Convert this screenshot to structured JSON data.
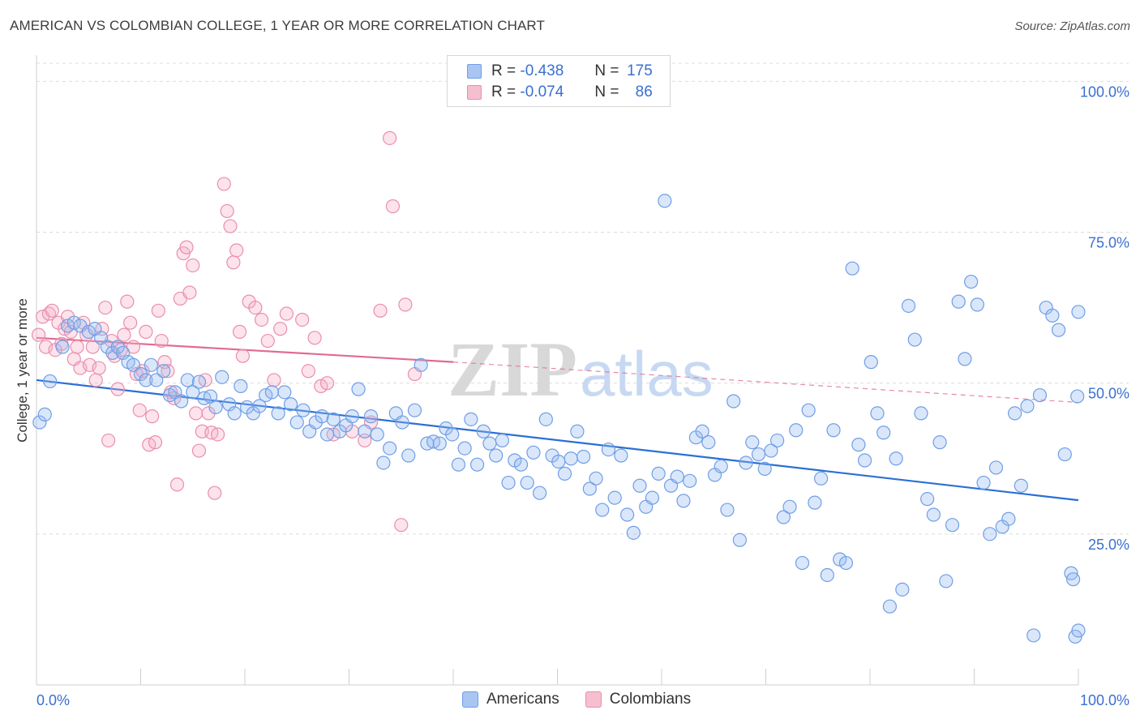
{
  "header": {
    "title": "AMERICAN VS COLOMBIAN COLLEGE, 1 YEAR OR MORE CORRELATION CHART",
    "source": "Source: ZipAtlas.com"
  },
  "legend": {
    "rows": [
      {
        "r_label": "R =",
        "r_value": "-0.438",
        "n_label": "N =",
        "n_value": "175",
        "color": "#a9c6f2",
        "border": "#6f9ee6"
      },
      {
        "r_label": "R =",
        "r_value": "-0.074",
        "n_label": "N =",
        "n_value": "86",
        "color": "#f6bfd0",
        "border": "#ea8fab"
      }
    ]
  },
  "bottom_legend": {
    "items": [
      {
        "label": "Americans",
        "color": "#a9c6f2",
        "border": "#6f9ee6"
      },
      {
        "label": "Colombians",
        "color": "#f6bfd0",
        "border": "#ea8fab"
      }
    ]
  },
  "watermark": {
    "part1": "ZIP",
    "part2": "atlas"
  },
  "chart_data": {
    "type": "scatter",
    "title": "AMERICAN VS COLOMBIAN COLLEGE, 1 YEAR OR MORE CORRELATION CHART",
    "xlabel": "",
    "ylabel": "College, 1 year or more",
    "xlim": [
      0,
      100
    ],
    "ylim": [
      0,
      103
    ],
    "x_tick_labels": [
      "0.0%",
      "100.0%"
    ],
    "y_ticks": [
      25,
      50,
      75,
      100
    ],
    "y_tick_labels": [
      "25.0%",
      "50.0%",
      "75.0%",
      "100.0%"
    ],
    "grid": "horizontal dashed",
    "legend_position": "top-center",
    "series": [
      {
        "name": "Americans",
        "color": "#6f9ee6",
        "fill": "rgba(150,185,240,0.35)",
        "trend": {
          "x0": 0,
          "y0": 50.5,
          "x1": 100,
          "y1": 30.6,
          "style": "solid",
          "color": "#2a6fd6"
        },
        "points": [
          [
            0.3,
            43.5
          ],
          [
            0.8,
            44.8
          ],
          [
            1.3,
            50.3
          ],
          [
            2.5,
            56
          ],
          [
            3.0,
            59.5
          ],
          [
            3.6,
            60
          ],
          [
            4.2,
            59.5
          ],
          [
            5.0,
            58.5
          ],
          [
            5.6,
            59
          ],
          [
            6.2,
            57.5
          ],
          [
            6.8,
            56
          ],
          [
            7.3,
            55
          ],
          [
            7.8,
            56
          ],
          [
            8.3,
            55
          ],
          [
            8.8,
            53.5
          ],
          [
            9.3,
            53
          ],
          [
            10.0,
            51.5
          ],
          [
            10.5,
            50.5
          ],
          [
            11.0,
            53
          ],
          [
            11.5,
            50.5
          ],
          [
            12.2,
            52
          ],
          [
            12.8,
            48
          ],
          [
            13.3,
            48.5
          ],
          [
            13.9,
            47
          ],
          [
            14.5,
            50.5
          ],
          [
            15.0,
            48.5
          ],
          [
            15.6,
            50.2
          ],
          [
            16.1,
            47.5
          ],
          [
            16.7,
            47.8
          ],
          [
            17.2,
            46
          ],
          [
            17.8,
            51
          ],
          [
            18.5,
            46.5
          ],
          [
            19.0,
            45
          ],
          [
            19.6,
            49.5
          ],
          [
            20.2,
            46
          ],
          [
            20.8,
            45
          ],
          [
            21.4,
            46.2
          ],
          [
            22.0,
            48
          ],
          [
            22.6,
            48.5
          ],
          [
            23.2,
            45
          ],
          [
            23.8,
            48.5
          ],
          [
            24.4,
            46.5
          ],
          [
            25.0,
            43.5
          ],
          [
            25.6,
            45.5
          ],
          [
            26.2,
            42
          ],
          [
            26.8,
            43.5
          ],
          [
            27.4,
            44.5
          ],
          [
            27.9,
            41.5
          ],
          [
            28.5,
            44
          ],
          [
            29.1,
            42
          ],
          [
            29.7,
            43
          ],
          [
            30.3,
            44.5
          ],
          [
            30.9,
            49
          ],
          [
            31.5,
            42
          ],
          [
            32.1,
            44.5
          ],
          [
            32.7,
            41.5
          ],
          [
            33.3,
            36.8
          ],
          [
            33.9,
            39.2
          ],
          [
            34.5,
            45
          ],
          [
            35.1,
            43.5
          ],
          [
            35.7,
            38
          ],
          [
            36.3,
            45.5
          ],
          [
            36.9,
            53
          ],
          [
            37.5,
            40
          ],
          [
            38.1,
            40.3
          ],
          [
            38.7,
            40
          ],
          [
            39.3,
            42.5
          ],
          [
            39.9,
            41.5
          ],
          [
            40.5,
            36.5
          ],
          [
            41.1,
            39.2
          ],
          [
            41.7,
            44
          ],
          [
            42.3,
            36.5
          ],
          [
            42.9,
            42
          ],
          [
            43.5,
            40
          ],
          [
            44.1,
            38
          ],
          [
            44.7,
            40.5
          ],
          [
            45.3,
            33.5
          ],
          [
            45.9,
            37.2
          ],
          [
            46.5,
            36.5
          ],
          [
            47.1,
            33.5
          ],
          [
            47.7,
            38.5
          ],
          [
            48.3,
            31.8
          ],
          [
            48.9,
            44
          ],
          [
            49.5,
            38
          ],
          [
            50.1,
            37
          ],
          [
            50.7,
            35
          ],
          [
            51.3,
            37.5
          ],
          [
            51.9,
            42
          ],
          [
            52.5,
            37.8
          ],
          [
            53.1,
            32.5
          ],
          [
            53.7,
            34.2
          ],
          [
            54.3,
            29
          ],
          [
            54.9,
            39
          ],
          [
            55.5,
            31
          ],
          [
            56.1,
            38
          ],
          [
            56.7,
            28.2
          ],
          [
            57.3,
            25.2
          ],
          [
            57.9,
            33
          ],
          [
            58.5,
            29.5
          ],
          [
            59.1,
            31
          ],
          [
            59.7,
            35
          ],
          [
            60.3,
            80.2
          ],
          [
            60.9,
            33
          ],
          [
            61.5,
            34.5
          ],
          [
            62.1,
            30.5
          ],
          [
            62.7,
            33.8
          ],
          [
            63.3,
            41
          ],
          [
            63.9,
            42
          ],
          [
            64.5,
            40.2
          ],
          [
            65.1,
            34.8
          ],
          [
            65.7,
            36.2
          ],
          [
            66.3,
            29
          ],
          [
            66.9,
            47
          ],
          [
            67.5,
            24
          ],
          [
            68.1,
            36.8
          ],
          [
            68.7,
            40.2
          ],
          [
            69.3,
            38.2
          ],
          [
            69.9,
            35.8
          ],
          [
            70.5,
            38.8
          ],
          [
            71.1,
            40.5
          ],
          [
            71.7,
            27.8
          ],
          [
            72.3,
            29.5
          ],
          [
            72.9,
            42.2
          ],
          [
            73.5,
            20.2
          ],
          [
            74.1,
            45.5
          ],
          [
            74.7,
            30.2
          ],
          [
            75.3,
            34.2
          ],
          [
            75.9,
            18.2
          ],
          [
            76.5,
            42.2
          ],
          [
            77.1,
            20.8
          ],
          [
            77.7,
            20.2
          ],
          [
            78.3,
            69
          ],
          [
            78.9,
            39.8
          ],
          [
            79.5,
            37.2
          ],
          [
            80.1,
            53.5
          ],
          [
            80.7,
            45
          ],
          [
            81.3,
            41.8
          ],
          [
            81.9,
            13
          ],
          [
            82.5,
            37.5
          ],
          [
            83.1,
            15.8
          ],
          [
            83.7,
            62.8
          ],
          [
            84.3,
            57.2
          ],
          [
            84.9,
            45
          ],
          [
            85.5,
            30.8
          ],
          [
            86.1,
            28.2
          ],
          [
            86.7,
            40.2
          ],
          [
            87.3,
            17.2
          ],
          [
            87.9,
            26.5
          ],
          [
            88.5,
            63.5
          ],
          [
            89.1,
            54
          ],
          [
            89.7,
            66.8
          ],
          [
            90.3,
            63
          ],
          [
            90.9,
            33.5
          ],
          [
            91.5,
            25
          ],
          [
            92.1,
            36
          ],
          [
            92.7,
            26.2
          ],
          [
            93.3,
            27.5
          ],
          [
            93.9,
            45
          ],
          [
            94.5,
            33
          ],
          [
            95.1,
            46.2
          ],
          [
            95.7,
            8.2
          ],
          [
            96.3,
            48
          ],
          [
            96.9,
            62.5
          ],
          [
            97.5,
            61.2
          ],
          [
            98.1,
            58.8
          ],
          [
            98.7,
            38.2
          ],
          [
            99.3,
            18.5
          ],
          [
            99.5,
            17.5
          ],
          [
            99.7,
            8
          ],
          [
            99.9,
            47.8
          ],
          [
            100,
            9
          ],
          [
            100,
            61.8
          ]
        ]
      },
      {
        "name": "Colombians",
        "color": "#ea8fab",
        "fill": "rgba(245,175,200,0.35)",
        "trend": {
          "x0": 0,
          "y0": 57.5,
          "x1": 40,
          "y1": 53.5,
          "style": "solid",
          "color": "#e06b94",
          "ext_x1": 100,
          "ext_y1": 46.8,
          "ext_style": "dashed"
        },
        "points": [
          [
            0.2,
            58
          ],
          [
            0.6,
            61
          ],
          [
            0.9,
            56
          ],
          [
            1.2,
            61.5
          ],
          [
            1.5,
            62
          ],
          [
            1.8,
            55.5
          ],
          [
            2.1,
            60
          ],
          [
            2.4,
            56.5
          ],
          [
            2.7,
            59
          ],
          [
            3.0,
            61
          ],
          [
            3.3,
            58.5
          ],
          [
            3.6,
            54
          ],
          [
            3.9,
            56
          ],
          [
            4.2,
            52.5
          ],
          [
            4.5,
            60
          ],
          [
            4.8,
            58
          ],
          [
            5.1,
            53
          ],
          [
            5.4,
            56
          ],
          [
            5.7,
            50.5
          ],
          [
            6.0,
            52.5
          ],
          [
            6.3,
            59
          ],
          [
            6.6,
            62.5
          ],
          [
            6.9,
            40.5
          ],
          [
            7.2,
            57
          ],
          [
            7.5,
            54.5
          ],
          [
            7.8,
            49
          ],
          [
            8.1,
            55.5
          ],
          [
            8.4,
            58
          ],
          [
            8.7,
            63.5
          ],
          [
            9.0,
            60
          ],
          [
            9.3,
            56
          ],
          [
            9.6,
            51.5
          ],
          [
            9.9,
            45.5
          ],
          [
            10.2,
            52
          ],
          [
            10.5,
            58.5
          ],
          [
            10.8,
            39.8
          ],
          [
            11.1,
            44.5
          ],
          [
            11.4,
            40.2
          ],
          [
            11.7,
            62
          ],
          [
            12.0,
            57
          ],
          [
            12.3,
            53.5
          ],
          [
            12.6,
            52
          ],
          [
            12.9,
            48.5
          ],
          [
            13.2,
            47.5
          ],
          [
            13.5,
            33.2
          ],
          [
            13.8,
            64
          ],
          [
            14.1,
            71.5
          ],
          [
            14.4,
            72.5
          ],
          [
            14.7,
            65
          ],
          [
            15.0,
            69.5
          ],
          [
            15.3,
            45
          ],
          [
            15.6,
            38.8
          ],
          [
            15.9,
            42
          ],
          [
            16.2,
            50.5
          ],
          [
            16.5,
            45
          ],
          [
            16.8,
            41.8
          ],
          [
            17.1,
            31.8
          ],
          [
            17.4,
            41.5
          ],
          [
            18.0,
            83
          ],
          [
            18.3,
            78.5
          ],
          [
            18.6,
            76
          ],
          [
            18.9,
            70
          ],
          [
            19.2,
            72
          ],
          [
            19.5,
            58.5
          ],
          [
            19.8,
            54.5
          ],
          [
            20.4,
            63.5
          ],
          [
            21.0,
            62.5
          ],
          [
            21.6,
            60.5
          ],
          [
            22.2,
            57
          ],
          [
            22.8,
            50.5
          ],
          [
            23.4,
            59
          ],
          [
            24.0,
            61.5
          ],
          [
            25.5,
            60.5
          ],
          [
            26.1,
            52
          ],
          [
            26.7,
            57.5
          ],
          [
            27.3,
            49.5
          ],
          [
            27.9,
            50
          ],
          [
            28.5,
            41.5
          ],
          [
            30.3,
            42
          ],
          [
            31.5,
            40.5
          ],
          [
            32.1,
            43.5
          ],
          [
            34.2,
            79.3
          ],
          [
            35.4,
            63
          ],
          [
            36.3,
            51.5
          ],
          [
            33.0,
            62
          ],
          [
            35.0,
            26.5
          ],
          [
            33.9,
            90.6
          ]
        ]
      }
    ]
  }
}
